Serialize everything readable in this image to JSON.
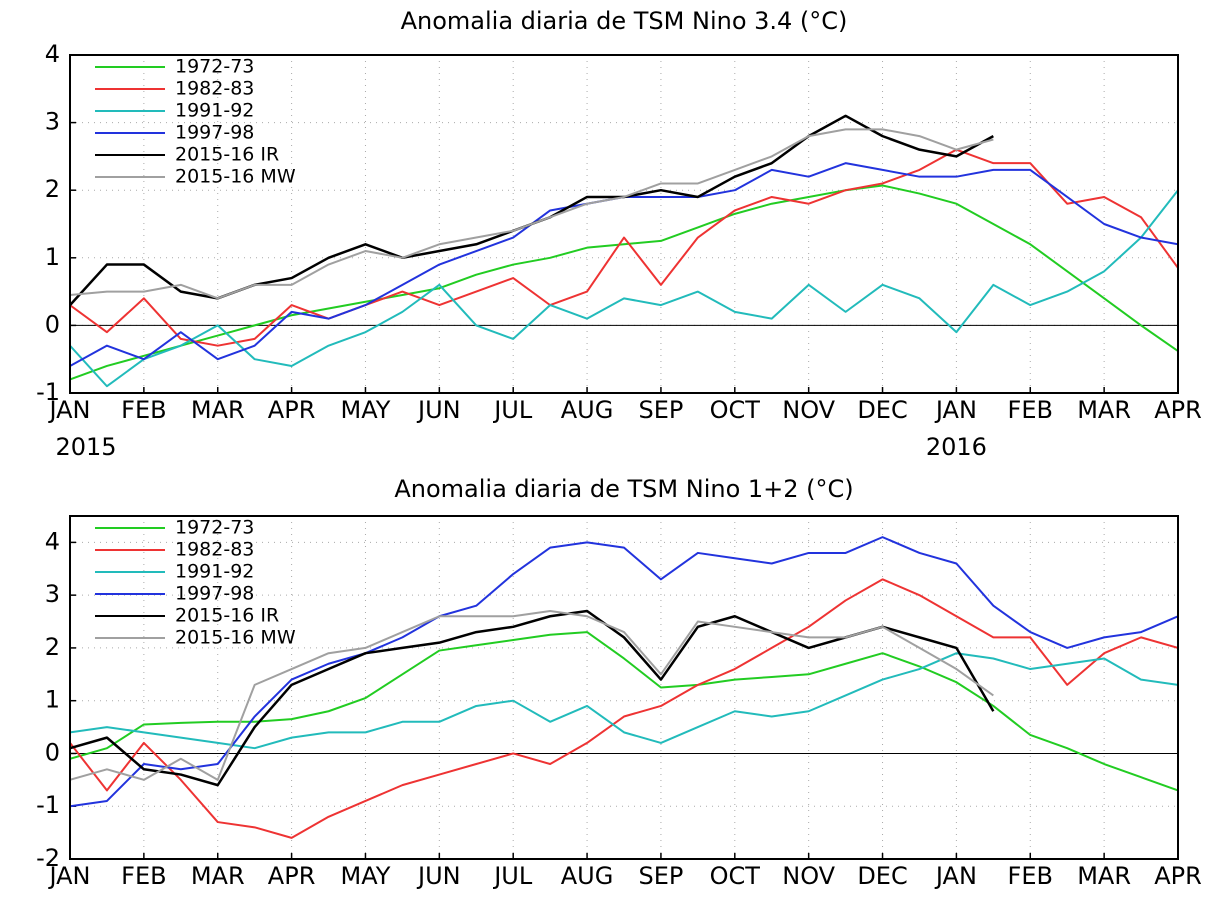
{
  "chart_data": [
    {
      "type": "line",
      "title": "Anomalia diaria de TSM Nino 3.4 (°C)",
      "x": [
        0,
        0.5,
        1,
        1.5,
        2,
        2.5,
        3,
        3.5,
        4,
        4.5,
        5,
        5.5,
        6,
        6.5,
        7,
        7.5,
        8,
        8.5,
        9,
        9.5,
        10,
        10.5,
        11,
        11.5,
        12,
        12.5,
        13,
        13.5,
        14,
        14.5,
        15
      ],
      "xlim": [
        0,
        15
      ],
      "xticks": [
        {
          "value": 0,
          "label": "JAN"
        },
        {
          "value": 1,
          "label": "FEB"
        },
        {
          "value": 2,
          "label": "MAR"
        },
        {
          "value": 3,
          "label": "APR"
        },
        {
          "value": 4,
          "label": "MAY"
        },
        {
          "value": 5,
          "label": "JUN"
        },
        {
          "value": 6,
          "label": "JUL"
        },
        {
          "value": 7,
          "label": "AUG"
        },
        {
          "value": 8,
          "label": "SEP"
        },
        {
          "value": 9,
          "label": "OCT"
        },
        {
          "value": 10,
          "label": "NOV"
        },
        {
          "value": 11,
          "label": "DEC"
        },
        {
          "value": 12,
          "label": "JAN"
        },
        {
          "value": 13,
          "label": "FEB"
        },
        {
          "value": 14,
          "label": "MAR"
        },
        {
          "value": 15,
          "label": "APR"
        }
      ],
      "year_labels": [
        {
          "value": 0,
          "label": "2015"
        },
        {
          "value": 12,
          "label": "2016"
        }
      ],
      "ylim": [
        -1,
        4
      ],
      "yticks": [
        -1,
        0,
        1,
        2,
        3,
        4
      ],
      "hline": 0,
      "grid": true,
      "legend": "upper-left",
      "series": [
        {
          "name": "1972-73",
          "color": "#22cc22",
          "values": [
            -0.8,
            -0.6,
            -0.45,
            -0.3,
            -0.15,
            0,
            0.15,
            0.25,
            0.35,
            0.45,
            0.55,
            0.75,
            0.9,
            1.0,
            1.15,
            1.2,
            1.25,
            1.45,
            1.65,
            1.8,
            1.9,
            2.0,
            2.07,
            1.95,
            1.8,
            1.5,
            1.2,
            0.8,
            0.4,
            0,
            -0.38
          ]
        },
        {
          "name": "1982-83",
          "color": "#ee3333",
          "values": [
            0.3,
            -0.1,
            0.4,
            -0.2,
            -0.3,
            -0.2,
            0.3,
            0.1,
            0.3,
            0.5,
            0.3,
            0.5,
            0.7,
            0.3,
            0.5,
            1.3,
            0.6,
            1.3,
            1.7,
            1.9,
            1.8,
            2.0,
            2.1,
            2.3,
            2.6,
            2.4,
            2.4,
            1.8,
            1.9,
            1.6,
            0.85
          ]
        },
        {
          "name": "1991-92",
          "color": "#22bbbb",
          "values": [
            -0.3,
            -0.9,
            -0.5,
            -0.3,
            0,
            -0.5,
            -0.6,
            -0.3,
            -0.1,
            0.2,
            0.6,
            0,
            -0.2,
            0.3,
            0.1,
            0.4,
            0.3,
            0.5,
            0.2,
            0.1,
            0.6,
            0.2,
            0.6,
            0.4,
            -0.1,
            0.6,
            0.3,
            0.5,
            0.8,
            1.3,
            2.0
          ]
        },
        {
          "name": "1997-98",
          "color": "#2233dd",
          "values": [
            -0.6,
            -0.3,
            -0.5,
            -0.1,
            -0.5,
            -0.3,
            0.2,
            0.1,
            0.3,
            0.6,
            0.9,
            1.1,
            1.3,
            1.7,
            1.8,
            1.9,
            1.9,
            1.9,
            2.0,
            2.3,
            2.2,
            2.4,
            2.3,
            2.2,
            2.2,
            2.3,
            2.3,
            1.9,
            1.5,
            1.3,
            1.2
          ]
        },
        {
          "name": "2015-16 IR",
          "color": "#000000",
          "values": [
            0.3,
            0.9,
            0.9,
            0.5,
            0.4,
            0.6,
            0.7,
            1.0,
            1.2,
            1.0,
            1.1,
            1.2,
            1.4,
            1.6,
            1.9,
            1.9,
            2.0,
            1.9,
            2.2,
            2.4,
            2.8,
            3.1,
            2.8,
            2.6,
            2.5,
            2.8,
            null,
            null,
            null,
            null,
            null
          ]
        },
        {
          "name": "2015-16 MW",
          "color": "#a0a0a0",
          "values": [
            0.45,
            0.5,
            0.5,
            0.6,
            0.4,
            0.6,
            0.6,
            0.9,
            1.1,
            1.0,
            1.2,
            1.3,
            1.4,
            1.6,
            1.8,
            1.9,
            2.1,
            2.1,
            2.3,
            2.5,
            2.8,
            2.9,
            2.9,
            2.8,
            2.6,
            2.75,
            null,
            null,
            null,
            null,
            null
          ]
        }
      ]
    },
    {
      "type": "line",
      "title": "Anomalia diaria de TSM Nino 1+2 (°C)",
      "x": [
        0,
        0.5,
        1,
        1.5,
        2,
        2.5,
        3,
        3.5,
        4,
        4.5,
        5,
        5.5,
        6,
        6.5,
        7,
        7.5,
        8,
        8.5,
        9,
        9.5,
        10,
        10.5,
        11,
        11.5,
        12,
        12.5,
        13,
        13.5,
        14,
        14.5,
        15
      ],
      "xlim": [
        0,
        15
      ],
      "xticks": [
        {
          "value": 0,
          "label": "JAN"
        },
        {
          "value": 1,
          "label": "FEB"
        },
        {
          "value": 2,
          "label": "MAR"
        },
        {
          "value": 3,
          "label": "APR"
        },
        {
          "value": 4,
          "label": "MAY"
        },
        {
          "value": 5,
          "label": "JUN"
        },
        {
          "value": 6,
          "label": "JUL"
        },
        {
          "value": 7,
          "label": "AUG"
        },
        {
          "value": 8,
          "label": "SEP"
        },
        {
          "value": 9,
          "label": "OCT"
        },
        {
          "value": 10,
          "label": "NOV"
        },
        {
          "value": 11,
          "label": "DEC"
        },
        {
          "value": 12,
          "label": "JAN"
        },
        {
          "value": 13,
          "label": "FEB"
        },
        {
          "value": 14,
          "label": "MAR"
        },
        {
          "value": 15,
          "label": "APR"
        }
      ],
      "ylim": [
        -2,
        4.5
      ],
      "yticks": [
        -2,
        -1,
        0,
        1,
        2,
        3,
        4
      ],
      "hline": 0,
      "grid": true,
      "legend": "upper-left",
      "series": [
        {
          "name": "1972-73",
          "color": "#22cc22",
          "values": [
            -0.1,
            0.1,
            0.55,
            0.58,
            0.6,
            0.6,
            0.65,
            0.8,
            1.05,
            1.5,
            1.95,
            2.05,
            2.15,
            2.25,
            2.3,
            1.8,
            1.25,
            1.3,
            1.4,
            1.45,
            1.5,
            1.7,
            1.9,
            1.65,
            1.35,
            0.9,
            0.35,
            0.1,
            -0.2,
            -0.45,
            -0.7
          ]
        },
        {
          "name": "1982-83",
          "color": "#ee3333",
          "values": [
            0.2,
            -0.7,
            0.2,
            -0.5,
            -1.3,
            -1.4,
            -1.6,
            -1.2,
            -0.9,
            -0.6,
            -0.4,
            -0.2,
            0,
            -0.2,
            0.2,
            0.7,
            0.9,
            1.3,
            1.6,
            2.0,
            2.4,
            2.9,
            3.3,
            3.0,
            2.6,
            2.2,
            2.2,
            1.3,
            1.9,
            2.2,
            2.0
          ]
        },
        {
          "name": "1991-92",
          "color": "#22bbbb",
          "values": [
            0.4,
            0.5,
            0.4,
            0.3,
            0.2,
            0.1,
            0.3,
            0.4,
            0.4,
            0.6,
            0.6,
            0.9,
            1.0,
            0.6,
            0.9,
            0.4,
            0.2,
            0.5,
            0.8,
            0.7,
            0.8,
            1.1,
            1.4,
            1.6,
            1.9,
            1.8,
            1.6,
            1.7,
            1.8,
            1.4,
            1.3
          ]
        },
        {
          "name": "1997-98",
          "color": "#2233dd",
          "values": [
            -1.0,
            -0.9,
            -0.2,
            -0.3,
            -0.2,
            0.7,
            1.4,
            1.7,
            1.9,
            2.2,
            2.6,
            2.8,
            3.4,
            3.9,
            4.0,
            3.9,
            3.3,
            3.8,
            3.7,
            3.6,
            3.8,
            3.8,
            4.1,
            3.8,
            3.6,
            2.8,
            2.3,
            2.0,
            2.2,
            2.3,
            2.6
          ]
        },
        {
          "name": "2015-16 IR",
          "color": "#000000",
          "values": [
            0.1,
            0.3,
            -0.3,
            -0.4,
            -0.6,
            0.5,
            1.3,
            1.6,
            1.9,
            2.0,
            2.1,
            2.3,
            2.4,
            2.6,
            2.7,
            2.2,
            1.4,
            2.4,
            2.6,
            2.3,
            2.0,
            2.2,
            2.4,
            2.2,
            2.0,
            0.8,
            null,
            null,
            null,
            null,
            null
          ]
        },
        {
          "name": "2015-16 MW",
          "color": "#a0a0a0",
          "values": [
            -0.5,
            -0.3,
            -0.5,
            -0.1,
            -0.5,
            1.3,
            1.6,
            1.9,
            2.0,
            2.3,
            2.6,
            2.6,
            2.6,
            2.7,
            2.6,
            2.3,
            1.5,
            2.5,
            2.4,
            2.3,
            2.2,
            2.2,
            2.4,
            2.0,
            1.6,
            1.1,
            null,
            null,
            null,
            null,
            null
          ]
        }
      ]
    }
  ]
}
